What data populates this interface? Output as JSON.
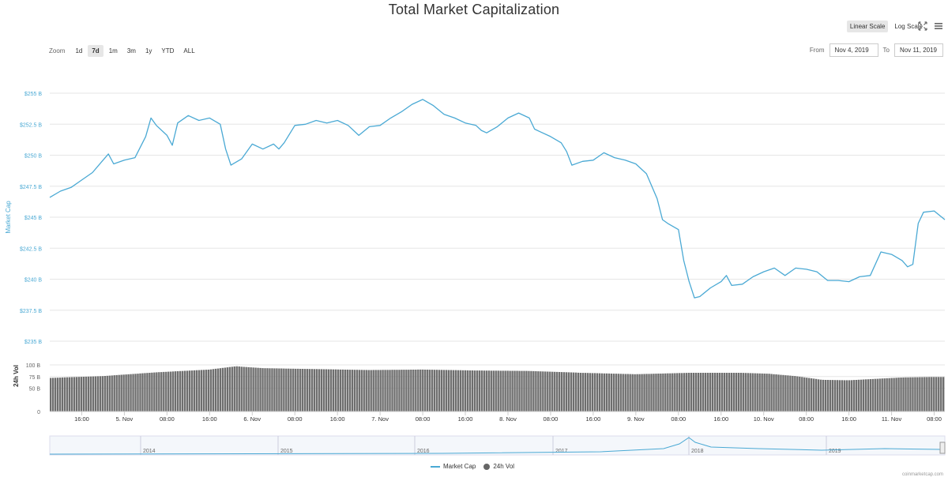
{
  "title": "Total Market Capitalization",
  "scale_buttons": {
    "linear": "Linear Scale",
    "log": "Log Scale"
  },
  "icons": {
    "fullscreen": "fullscreen-icon",
    "menu": "hamburger-menu-icon"
  },
  "zoom": {
    "label": "Zoom",
    "options": [
      "1d",
      "7d",
      "1m",
      "3m",
      "1y",
      "YTD",
      "ALL"
    ],
    "selected": "7d"
  },
  "range": {
    "from_label": "From",
    "from_value": "Nov 4, 2019",
    "to_label": "To",
    "to_value": "Nov 11, 2019"
  },
  "legend": {
    "market_cap": "Market Cap",
    "volume": "24h Vol"
  },
  "credit": "coinmarketcap.com",
  "colors": {
    "line": "#4aa9d4",
    "bars": "#6e6e6e",
    "grid": "#e6e6e6",
    "axis_label": "#4aa9d4"
  },
  "chart_data": {
    "type": "line",
    "title": "Total Market Capitalization",
    "xlabel": "",
    "ylabel": "Market Cap",
    "ylim": [
      235,
      255
    ],
    "y_ticks": [
      "$235 B",
      "$237.5 B",
      "$240 B",
      "$242.5 B",
      "$245 B",
      "$247.5 B",
      "$250 B",
      "$252.5 B",
      "$255 B"
    ],
    "x_tick_labels": [
      "16:00",
      "5. Nov",
      "08:00",
      "16:00",
      "6. Nov",
      "08:00",
      "16:00",
      "7. Nov",
      "08:00",
      "16:00",
      "8. Nov",
      "08:00",
      "16:00",
      "9. Nov",
      "08:00",
      "16:00",
      "10. Nov",
      "08:00",
      "16:00",
      "11. Nov",
      "08:00"
    ],
    "x_hours_start": 10,
    "x_hours_end": 178,
    "grid": true,
    "series": [
      {
        "name": "Market Cap",
        "unit": "B USD",
        "points": [
          [
            10,
            246.6
          ],
          [
            12,
            247.1
          ],
          [
            14,
            247.4
          ],
          [
            16,
            248.0
          ],
          [
            18,
            248.6
          ],
          [
            20,
            249.6
          ],
          [
            21,
            250.1
          ],
          [
            22,
            249.3
          ],
          [
            24,
            249.6
          ],
          [
            26,
            249.8
          ],
          [
            28,
            251.5
          ],
          [
            29,
            253.0
          ],
          [
            30,
            252.4
          ],
          [
            32,
            251.6
          ],
          [
            33,
            250.8
          ],
          [
            34,
            252.6
          ],
          [
            36,
            253.2
          ],
          [
            38,
            252.8
          ],
          [
            40,
            253.0
          ],
          [
            42,
            252.5
          ],
          [
            43,
            250.5
          ],
          [
            44,
            249.2
          ],
          [
            46,
            249.7
          ],
          [
            48,
            250.9
          ],
          [
            50,
            250.5
          ],
          [
            52,
            250.9
          ],
          [
            53,
            250.5
          ],
          [
            54,
            251.0
          ],
          [
            56,
            252.4
          ],
          [
            58,
            252.5
          ],
          [
            60,
            252.8
          ],
          [
            62,
            252.6
          ],
          [
            64,
            252.8
          ],
          [
            66,
            252.4
          ],
          [
            68,
            251.6
          ],
          [
            70,
            252.3
          ],
          [
            72,
            252.4
          ],
          [
            74,
            253.0
          ],
          [
            76,
            253.5
          ],
          [
            78,
            254.1
          ],
          [
            80,
            254.5
          ],
          [
            82,
            254.0
          ],
          [
            84,
            253.3
          ],
          [
            86,
            253.0
          ],
          [
            88,
            252.6
          ],
          [
            90,
            252.4
          ],
          [
            91,
            252.0
          ],
          [
            92,
            251.8
          ],
          [
            94,
            252.3
          ],
          [
            96,
            253.0
          ],
          [
            98,
            253.4
          ],
          [
            100,
            253.0
          ],
          [
            101,
            252.1
          ],
          [
            102,
            251.9
          ],
          [
            104,
            251.5
          ],
          [
            106,
            251.0
          ],
          [
            107,
            250.3
          ],
          [
            108,
            249.2
          ],
          [
            110,
            249.5
          ],
          [
            112,
            249.6
          ],
          [
            114,
            250.2
          ],
          [
            116,
            249.8
          ],
          [
            118,
            249.6
          ],
          [
            120,
            249.3
          ],
          [
            122,
            248.5
          ],
          [
            124,
            246.5
          ],
          [
            125,
            244.8
          ],
          [
            126,
            244.5
          ],
          [
            128,
            244.0
          ],
          [
            129,
            241.5
          ],
          [
            130,
            239.8
          ],
          [
            131,
            238.5
          ],
          [
            132,
            238.6
          ],
          [
            134,
            239.3
          ],
          [
            136,
            239.8
          ],
          [
            137,
            240.3
          ],
          [
            138,
            239.5
          ],
          [
            140,
            239.6
          ],
          [
            142,
            240.2
          ],
          [
            144,
            240.6
          ],
          [
            146,
            240.9
          ],
          [
            148,
            240.3
          ],
          [
            150,
            240.9
          ],
          [
            152,
            240.8
          ],
          [
            154,
            240.6
          ],
          [
            156,
            239.9
          ],
          [
            158,
            239.9
          ],
          [
            160,
            239.8
          ],
          [
            162,
            240.2
          ],
          [
            164,
            240.3
          ],
          [
            166,
            242.2
          ],
          [
            168,
            242.0
          ],
          [
            170,
            241.5
          ],
          [
            171,
            241.0
          ],
          [
            172,
            241.2
          ],
          [
            173,
            244.5
          ],
          [
            174,
            245.4
          ],
          [
            176,
            245.5
          ],
          [
            178,
            244.8
          ]
        ]
      },
      {
        "name": "24h Vol",
        "unit": "B USD",
        "ylim": [
          0,
          100
        ],
        "y_ticks": [
          "0",
          "50 B",
          "75 B",
          "100 B"
        ],
        "ylabel": "24h Vol",
        "points": [
          [
            10,
            72
          ],
          [
            20,
            76
          ],
          [
            30,
            84
          ],
          [
            40,
            90
          ],
          [
            45,
            97
          ],
          [
            50,
            93
          ],
          [
            60,
            91
          ],
          [
            70,
            89
          ],
          [
            80,
            90
          ],
          [
            90,
            88
          ],
          [
            100,
            87
          ],
          [
            110,
            83
          ],
          [
            120,
            80
          ],
          [
            130,
            83
          ],
          [
            140,
            83
          ],
          [
            145,
            81
          ],
          [
            150,
            76
          ],
          [
            155,
            68
          ],
          [
            160,
            67
          ],
          [
            165,
            70
          ],
          [
            170,
            73
          ],
          [
            175,
            74
          ],
          [
            178,
            74
          ]
        ]
      }
    ],
    "navigator": {
      "x_labels": [
        "2014",
        "2015",
        "2016",
        "2017",
        "2018",
        "2019"
      ]
    }
  }
}
